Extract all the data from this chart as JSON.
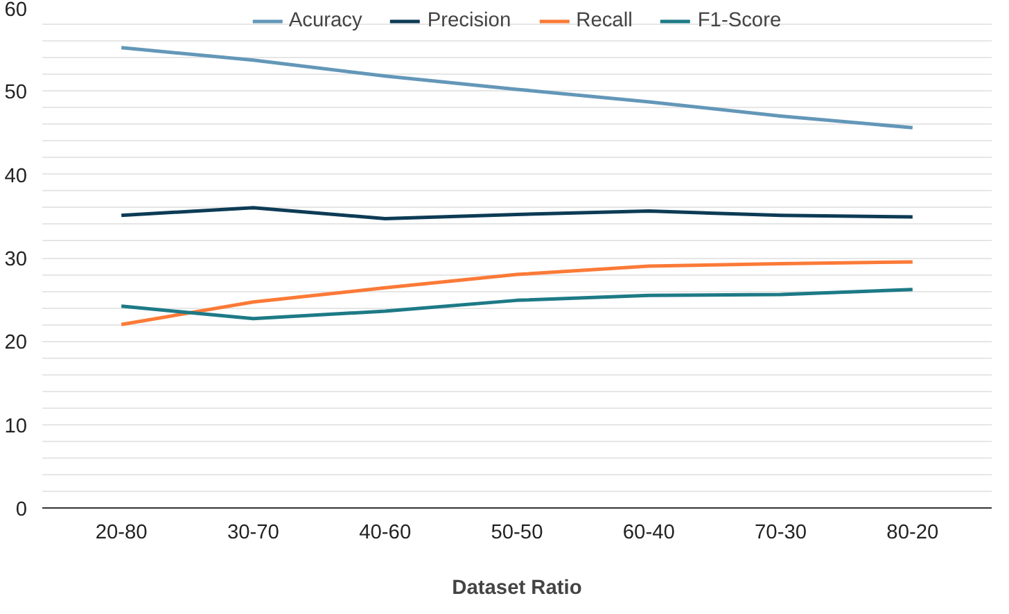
{
  "chart_data": {
    "type": "line",
    "xlabel": "Dataset Ratio",
    "categories": [
      "20-80",
      "30-70",
      "40-60",
      "50-50",
      "60-40",
      "70-30",
      "80-20"
    ],
    "series": [
      {
        "name": "Acuracy",
        "color": "#6397b8",
        "values": [
          55.2,
          53.7,
          51.8,
          50.2,
          48.7,
          47.0,
          45.6
        ]
      },
      {
        "name": "Precision",
        "color": "#0d3b55",
        "values": [
          35.1,
          36.0,
          34.7,
          35.2,
          35.6,
          35.1,
          34.9
        ]
      },
      {
        "name": "Recall",
        "color": "#fb7a37",
        "values": [
          22.0,
          24.7,
          26.4,
          28.0,
          29.0,
          29.3,
          29.5
        ]
      },
      {
        "name": "F1-Score",
        "color": "#1d7a86",
        "values": [
          24.2,
          22.7,
          23.6,
          24.9,
          25.5,
          25.6,
          26.2
        ]
      }
    ],
    "ylim": [
      0,
      60
    ],
    "yticks": [
      0,
      10,
      20,
      30,
      40,
      50,
      60
    ],
    "grid": "y",
    "legend": "top",
    "marker": "none",
    "line_style": "solid"
  }
}
